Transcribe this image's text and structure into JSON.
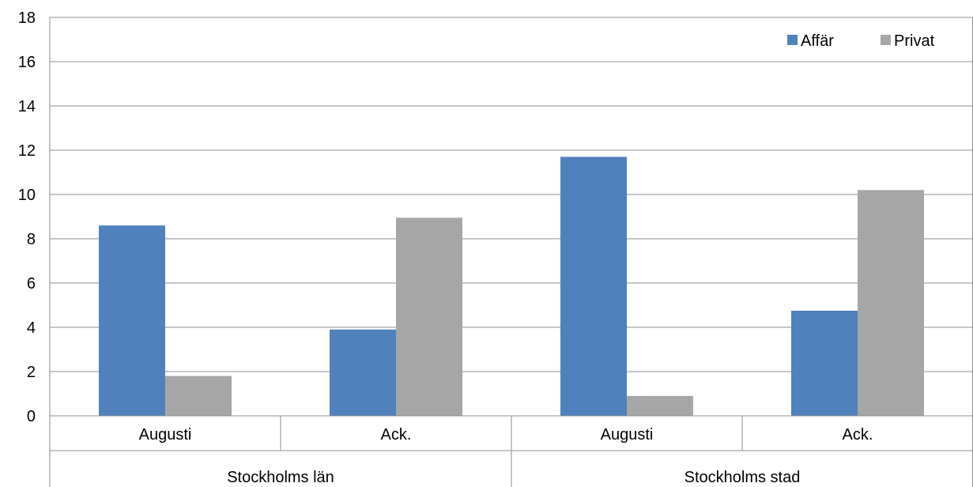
{
  "chart_data": {
    "type": "bar",
    "title": "",
    "xlabel": "",
    "ylabel": "",
    "ylim": [
      0,
      18
    ],
    "yticks": [
      0,
      2,
      4,
      6,
      8,
      10,
      12,
      14,
      16,
      18
    ],
    "grid": true,
    "legend_position": "top-right",
    "groups": [
      {
        "label": "Stockholms län",
        "categories": [
          "Augusti",
          "Ack."
        ]
      },
      {
        "label": "Stockholms stad",
        "categories": [
          "Augusti",
          "Ack."
        ]
      }
    ],
    "categories": [
      "Augusti",
      "Ack.",
      "Augusti",
      "Ack."
    ],
    "series": [
      {
        "name": "Affär",
        "color": "#4F81BD",
        "values": [
          8.6,
          3.9,
          11.7,
          4.75
        ]
      },
      {
        "name": "Privat",
        "color": "#A6A6A6",
        "values": [
          1.8,
          8.95,
          0.9,
          10.2
        ]
      }
    ]
  }
}
